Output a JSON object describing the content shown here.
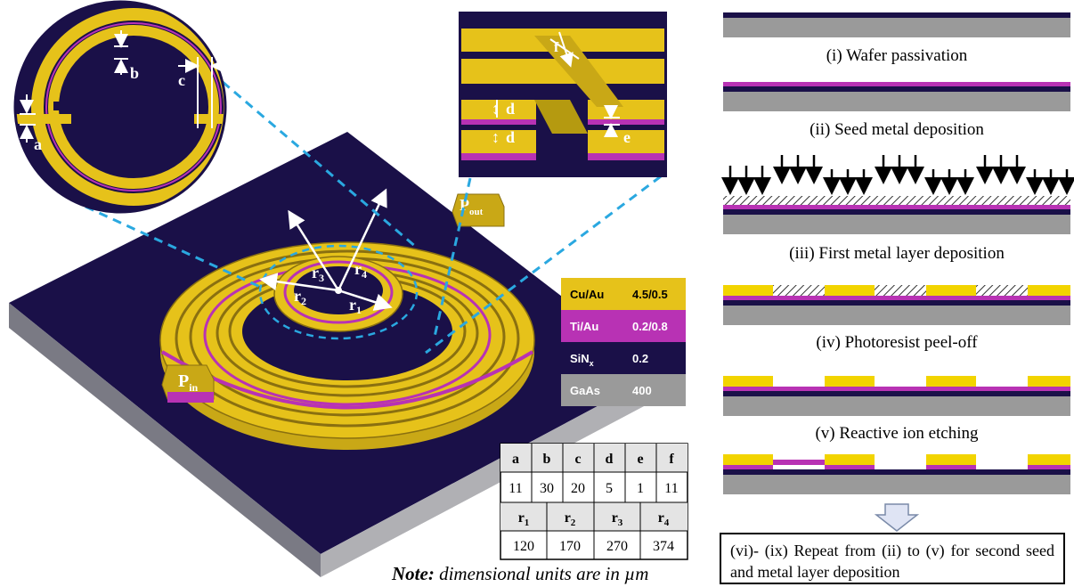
{
  "materials": [
    {
      "name": "Cu/Au",
      "value": "4.5/0.5",
      "color": "#e6c21a",
      "text": "#000000"
    },
    {
      "name": "Ti/Au",
      "value": "0.2/0.8",
      "color": "#b832b4",
      "text": "#ffffff"
    },
    {
      "name": "SiNx",
      "value": "0.2",
      "color": "#1a1048",
      "text": "#ffffff"
    },
    {
      "name": "GaAs",
      "value": "400",
      "color": "#9a9a9a",
      "text": "#ffffff"
    }
  ],
  "dimension_labels": {
    "a": "a",
    "b": "b",
    "c": "c",
    "d": "d",
    "e": "e",
    "f": "f"
  },
  "radius_labels": {
    "r1": "r1",
    "r2": "r2",
    "r3": "r3",
    "r4": "r4"
  },
  "ports": {
    "in": "P",
    "in_sub": "in",
    "out": "P",
    "out_sub": "out"
  },
  "dims_table": {
    "row1_headers": [
      "a",
      "b",
      "c",
      "d",
      "e",
      "f"
    ],
    "row1_values": [
      "11",
      "30",
      "20",
      "5",
      "1",
      "11"
    ],
    "row2_headers": [
      "r1",
      "r2",
      "r3",
      "r4"
    ],
    "row2_values": [
      "120",
      "170",
      "270",
      "374"
    ]
  },
  "note": {
    "bold": "Note:",
    "text": " dimensional units are in µm"
  },
  "steps": [
    "(i) Wafer passivation",
    "(ii) Seed metal deposition",
    "(iii) First metal layer deposition",
    "(iv) Photoresist peel-off",
    "(v) Reactive ion etching"
  ],
  "repeat_text": "(vi)- (ix) Repeat from (ii) to (v) for second seed and metal layer deposition",
  "colors": {
    "gold": "#e6c21a",
    "magenta": "#b832b4",
    "navy": "#1a1048",
    "gray": "#9a9a9a",
    "dash": "#2aa8e0"
  }
}
